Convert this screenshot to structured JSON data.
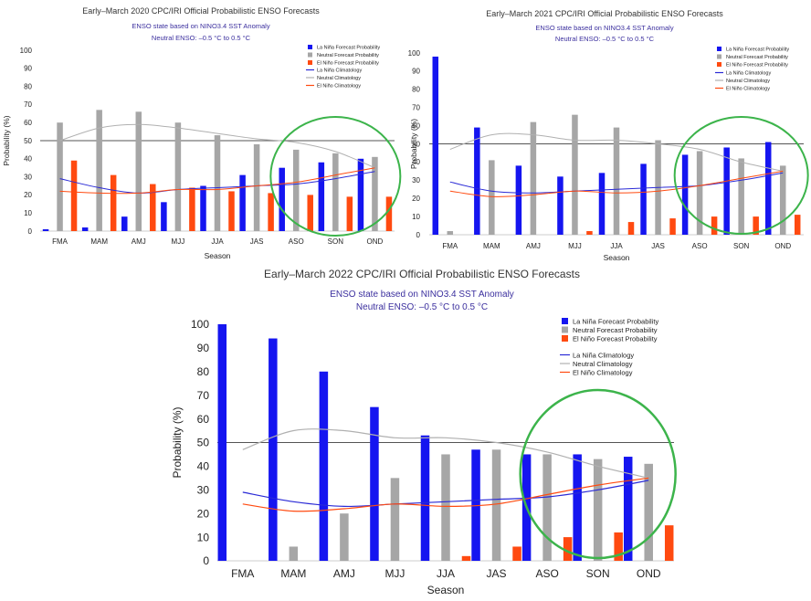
{
  "colors": {
    "lanina": "#1515f0",
    "neutral": "#a6a6a6",
    "elnino": "#ff4a10",
    "lanina_clim": "#2a2ad6",
    "neutral_clim": "#b0b0b0",
    "elnino_clim": "#ff4a10",
    "title": "#333333",
    "subtitle": "#3b2f9e",
    "circle": "#3cb44b"
  },
  "chart_data": [
    {
      "type": "bar",
      "title": "Early–March 2020 CPC/IRI Official Probabilistic ENSO Forecasts",
      "subtitle_1": "ENSO state based on NINO3.4 SST Anomaly",
      "subtitle_2": "Neutral ENSO: –0.5 °C to 0.5 °C",
      "xlabel": "Season",
      "ylabel": "Probability (%)",
      "ylim": [
        0,
        100
      ],
      "yticks": [
        0,
        10,
        20,
        30,
        40,
        50,
        60,
        70,
        80,
        90,
        100
      ],
      "reference_line": 50,
      "categories": [
        "FMA",
        "MAM",
        "AMJ",
        "MJJ",
        "JJA",
        "JAS",
        "ASO",
        "SON",
        "OND"
      ],
      "series": [
        {
          "name": "La Niña Forecast Probability",
          "values": [
            1,
            2,
            8,
            16,
            25,
            31,
            35,
            38,
            40
          ]
        },
        {
          "name": "Neutral Forecast Probability",
          "values": [
            60,
            67,
            66,
            60,
            53,
            48,
            45,
            43,
            41
          ]
        },
        {
          "name": "El Niño Forecast Probability",
          "values": [
            39,
            31,
            26,
            24,
            22,
            21,
            20,
            19,
            19
          ]
        }
      ],
      "climatology": [
        {
          "name": "La Niña Climatology",
          "values": [
            29,
            24,
            21,
            23,
            24,
            25,
            26,
            29,
            33
          ]
        },
        {
          "name": "Neutral Climatology",
          "values": [
            50,
            57,
            59,
            57,
            54,
            51,
            49,
            44,
            35
          ]
        },
        {
          "name": "El Niño Climatology",
          "values": [
            22,
            21,
            21,
            23,
            23,
            25,
            27,
            31,
            35
          ]
        }
      ],
      "highlight": "circle around ASO–OND"
    },
    {
      "type": "bar",
      "title": "Early–March 2021 CPC/IRI Official Probabilistic ENSO Forecasts",
      "subtitle_1": "ENSO state based on NINO3.4 SST Anomaly",
      "subtitle_2": "Neutral ENSO: –0.5 °C to 0.5 °C",
      "xlabel": "Season",
      "ylabel": "Probability (%)",
      "ylim": [
        0,
        100
      ],
      "yticks": [
        0,
        10,
        20,
        30,
        40,
        50,
        60,
        70,
        80,
        90,
        100
      ],
      "reference_line": 50,
      "categories": [
        "FMA",
        "MAM",
        "AMJ",
        "MJJ",
        "JJA",
        "JAS",
        "ASO",
        "SON",
        "OND"
      ],
      "series": [
        {
          "name": "La Niña Forecast Probability",
          "values": [
            98,
            59,
            38,
            32,
            34,
            39,
            44,
            48,
            51
          ]
        },
        {
          "name": "Neutral Forecast Probability",
          "values": [
            2,
            41,
            62,
            66,
            59,
            52,
            46,
            42,
            38
          ]
        },
        {
          "name": "El Niño Forecast Probability",
          "values": [
            0,
            0,
            0,
            2,
            7,
            9,
            10,
            10,
            11
          ]
        }
      ],
      "climatology": [
        {
          "name": "La Niña Climatology",
          "values": [
            29,
            24,
            23,
            24,
            25,
            26,
            27,
            30,
            34
          ]
        },
        {
          "name": "Neutral Climatology",
          "values": [
            47,
            55,
            55,
            52,
            52,
            50,
            47,
            40,
            35
          ]
        },
        {
          "name": "El Niño Climatology",
          "values": [
            24,
            21,
            22,
            24,
            23,
            24,
            27,
            31,
            35
          ]
        }
      ],
      "highlight": "circle around ASO–OND"
    },
    {
      "type": "bar",
      "title": "Early–March 2022 CPC/IRI Official Probabilistic ENSO Forecasts",
      "subtitle_1": "ENSO state based on NINO3.4 SST Anomaly",
      "subtitle_2": "Neutral ENSO: –0.5 °C to 0.5 °C",
      "xlabel": "Season",
      "ylabel": "Probability (%)",
      "ylim": [
        0,
        100
      ],
      "yticks": [
        0,
        10,
        20,
        30,
        40,
        50,
        60,
        70,
        80,
        90,
        100
      ],
      "reference_line": 50,
      "categories": [
        "FMA",
        "MAM",
        "AMJ",
        "MJJ",
        "JJA",
        "JAS",
        "ASO",
        "SON",
        "OND"
      ],
      "series": [
        {
          "name": "La Niña Forecast Probability",
          "values": [
            100,
            94,
            80,
            65,
            53,
            47,
            45,
            45,
            44
          ]
        },
        {
          "name": "Neutral Forecast Probability",
          "values": [
            0,
            6,
            20,
            35,
            45,
            47,
            45,
            43,
            41
          ]
        },
        {
          "name": "El Niño Forecast Probability",
          "values": [
            0,
            0,
            0,
            0,
            2,
            6,
            10,
            12,
            15
          ]
        }
      ],
      "climatology": [
        {
          "name": "La Niña Climatology",
          "values": [
            29,
            25,
            23,
            24,
            25,
            26,
            27,
            30,
            34
          ]
        },
        {
          "name": "Neutral Climatology",
          "values": [
            47,
            55,
            55,
            52,
            52,
            50,
            46,
            40,
            35
          ]
        },
        {
          "name": "El Niño Climatology",
          "values": [
            24,
            21,
            22,
            24,
            23,
            24,
            28,
            32,
            35
          ]
        }
      ],
      "highlight": "circle around ASO–OND"
    }
  ]
}
